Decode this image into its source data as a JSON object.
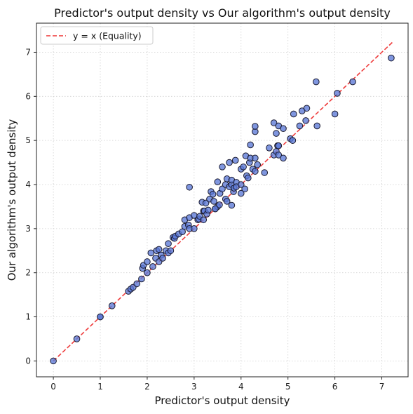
{
  "chart_data": {
    "type": "scatter",
    "title": "Predictor's output density vs Our algorithm's output density",
    "xlabel": "Predictor's output density",
    "ylabel": "Our algorithm's output density",
    "xlim": [
      -0.36,
      7.56
    ],
    "ylim": [
      -0.36,
      7.66
    ],
    "xticks": [
      0,
      1,
      2,
      3,
      4,
      5,
      6,
      7
    ],
    "yticks": [
      0,
      1,
      2,
      3,
      4,
      5,
      6,
      7
    ],
    "grid": true,
    "legend_position": "top-left",
    "reference_line": {
      "name": "y = x (Equality)",
      "x": [
        0,
        7.25
      ],
      "y": [
        0,
        7.25
      ],
      "color": "#ee3333",
      "style": "dashed"
    },
    "marker_color": "#5b79d6",
    "marker_edge_color": "#1a1a2e",
    "points": [
      [
        0,
        0
      ],
      [
        0.5,
        0.5
      ],
      [
        1.0,
        1.0
      ],
      [
        1.0,
        1.0
      ],
      [
        1.25,
        1.25
      ],
      [
        1.6,
        1.58
      ],
      [
        1.65,
        1.63
      ],
      [
        1.7,
        1.67
      ],
      [
        1.78,
        1.75
      ],
      [
        1.88,
        1.86
      ],
      [
        1.9,
        2.1
      ],
      [
        1.92,
        2.17
      ],
      [
        2.0,
        2.0
      ],
      [
        2.0,
        2.25
      ],
      [
        2.08,
        2.45
      ],
      [
        2.12,
        2.14
      ],
      [
        2.18,
        2.33
      ],
      [
        2.2,
        2.5
      ],
      [
        2.25,
        2.25
      ],
      [
        2.25,
        2.53
      ],
      [
        2.3,
        2.4
      ],
      [
        2.33,
        2.33
      ],
      [
        2.4,
        2.5
      ],
      [
        2.45,
        2.45
      ],
      [
        2.45,
        2.66
      ],
      [
        2.5,
        2.5
      ],
      [
        2.55,
        2.8
      ],
      [
        2.58,
        2.78
      ],
      [
        2.6,
        2.83
      ],
      [
        2.67,
        2.88
      ],
      [
        2.75,
        2.93
      ],
      [
        2.8,
        3.2
      ],
      [
        2.8,
        3.05
      ],
      [
        2.88,
        3.08
      ],
      [
        2.9,
        3.25
      ],
      [
        2.9,
        3.0
      ],
      [
        2.9,
        3.94
      ],
      [
        3.0,
        3.0
      ],
      [
        3.0,
        3.3
      ],
      [
        3.08,
        3.2
      ],
      [
        3.1,
        3.22
      ],
      [
        3.12,
        3.28
      ],
      [
        3.17,
        3.6
      ],
      [
        3.2,
        3.4
      ],
      [
        3.2,
        3.2
      ],
      [
        3.22,
        3.4
      ],
      [
        3.25,
        3.58
      ],
      [
        3.27,
        3.33
      ],
      [
        3.3,
        3.42
      ],
      [
        3.33,
        3.67
      ],
      [
        3.36,
        3.84
      ],
      [
        3.4,
        3.78
      ],
      [
        3.42,
        3.62
      ],
      [
        3.45,
        3.45
      ],
      [
        3.5,
        3.5
      ],
      [
        3.5,
        4.06
      ],
      [
        3.54,
        3.54
      ],
      [
        3.55,
        3.8
      ],
      [
        3.6,
        3.9
      ],
      [
        3.6,
        4.4
      ],
      [
        3.67,
        3.67
      ],
      [
        3.67,
        4.0
      ],
      [
        3.7,
        3.62
      ],
      [
        3.7,
        4.13
      ],
      [
        3.75,
        4.5
      ],
      [
        3.75,
        3.95
      ],
      [
        3.8,
        4.0
      ],
      [
        3.8,
        4.1
      ],
      [
        3.8,
        3.53
      ],
      [
        3.84,
        3.84
      ],
      [
        3.85,
        3.92
      ],
      [
        3.88,
        4.55
      ],
      [
        3.9,
        4.05
      ],
      [
        3.9,
        3.95
      ],
      [
        4.0,
        3.8
      ],
      [
        4.0,
        4.0
      ],
      [
        4.0,
        4.35
      ],
      [
        4.05,
        4.4
      ],
      [
        4.08,
        3.9
      ],
      [
        4.1,
        4.65
      ],
      [
        4.12,
        4.2
      ],
      [
        4.15,
        4.15
      ],
      [
        4.18,
        4.5
      ],
      [
        4.2,
        4.6
      ],
      [
        4.2,
        4.9
      ],
      [
        4.25,
        4.35
      ],
      [
        4.3,
        4.3
      ],
      [
        4.3,
        4.6
      ],
      [
        4.3,
        5.2
      ],
      [
        4.35,
        4.45
      ],
      [
        4.5,
        4.27
      ],
      [
        4.6,
        4.83
      ],
      [
        4.7,
        5.4
      ],
      [
        4.7,
        4.67
      ],
      [
        4.75,
        4.75
      ],
      [
        4.75,
        5.16
      ],
      [
        4.78,
        4.88
      ],
      [
        4.8,
        5.33
      ],
      [
        4.8,
        4.67
      ],
      [
        4.8,
        4.88
      ],
      [
        4.9,
        4.6
      ],
      [
        4.9,
        5.27
      ],
      [
        5.05,
        5.04
      ],
      [
        5.1,
        5.0
      ],
      [
        5.12,
        5.6
      ],
      [
        5.25,
        5.33
      ],
      [
        5.3,
        5.67
      ],
      [
        5.38,
        5.45
      ],
      [
        5.4,
        5.73
      ],
      [
        5.6,
        6.33
      ],
      [
        5.62,
        5.33
      ],
      [
        6.0,
        5.6
      ],
      [
        6.05,
        6.07
      ],
      [
        6.38,
        6.33
      ],
      [
        7.2,
        6.87
      ],
      [
        4.3,
        5.32
      ],
      [
        3.45,
        3.45
      ]
    ]
  }
}
